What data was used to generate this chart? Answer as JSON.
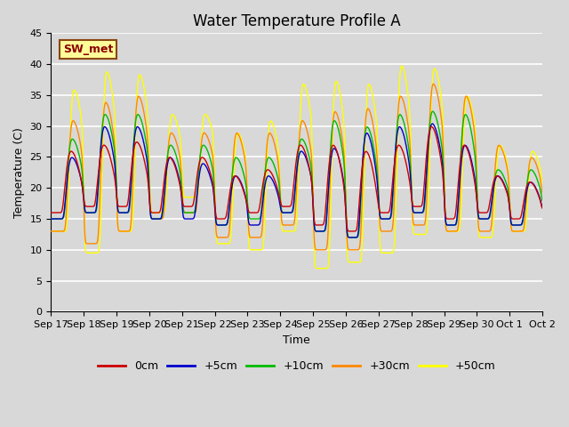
{
  "title": "Water Temperature Profile A",
  "xlabel": "Time",
  "ylabel": "Temperature (C)",
  "ylim": [
    0,
    45
  ],
  "yticks": [
    0,
    5,
    10,
    15,
    20,
    25,
    30,
    35,
    40,
    45
  ],
  "fig_bg_color": "#d8d8d8",
  "plot_bg_color": "#d8d8d8",
  "grid_color": "#ffffff",
  "legend_labels": [
    "0cm",
    "+5cm",
    "+10cm",
    "+30cm",
    "+50cm"
  ],
  "legend_colors": [
    "#cc0000",
    "#0000cc",
    "#00bb00",
    "#ff8800",
    "#ffff00"
  ],
  "annotation_text": "SW_met",
  "annotation_bg": "#ffff99",
  "annotation_border": "#8b4513",
  "annotation_text_color": "#8b0000",
  "x_tick_labels": [
    "Sep 17",
    "Sep 18",
    "Sep 19",
    "Sep 20",
    "Sep 21",
    "Sep 22",
    "Sep 23",
    "Sep 24",
    "Sep 25",
    "Sep 26",
    "Sep 27",
    "Sep 28",
    "Sep 29",
    "Sep 30",
    "Oct 1",
    "Oct 2"
  ],
  "title_fontsize": 12,
  "label_fontsize": 9,
  "tick_fontsize": 8,
  "legend_fontsize": 9,
  "line_width": 1.0
}
